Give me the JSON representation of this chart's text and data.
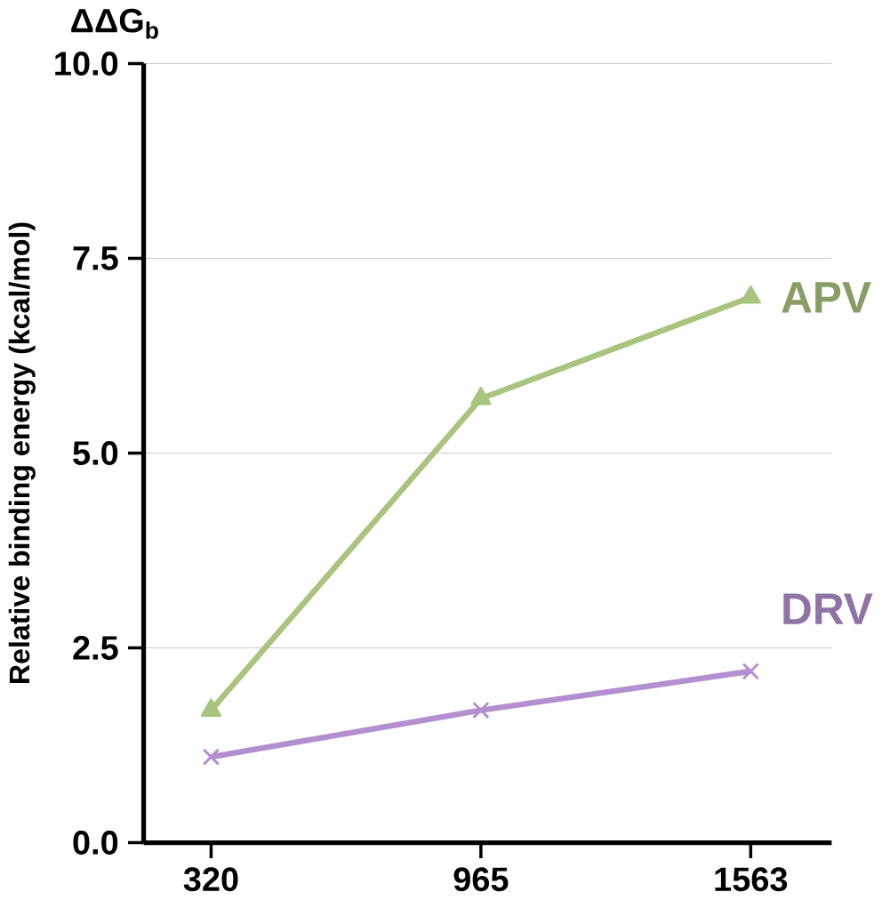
{
  "chart_data": {
    "type": "line",
    "title": "ΔΔG$_{b}$",
    "ylabel": "Relative binding energy (kcal/mol)",
    "categories": [
      "320",
      "965",
      "1563"
    ],
    "series": [
      {
        "name": "APV",
        "color": "#a9c47f",
        "marker": "triangle",
        "values": [
          1.7,
          5.7,
          7.0
        ]
      },
      {
        "name": "DRV",
        "color": "#b48fcf",
        "marker": "cross",
        "values": [
          1.1,
          1.7,
          2.2
        ]
      }
    ],
    "ylim": [
      0,
      10
    ],
    "yticks": [
      {
        "value": 0,
        "label": "0.0"
      },
      {
        "value": 2.5,
        "label": "2.5"
      },
      {
        "value": 5,
        "label": "5.0"
      },
      {
        "value": 7.5,
        "label": "7.5"
      },
      {
        "value": 10,
        "label": "10.0"
      }
    ],
    "grid": "y"
  }
}
